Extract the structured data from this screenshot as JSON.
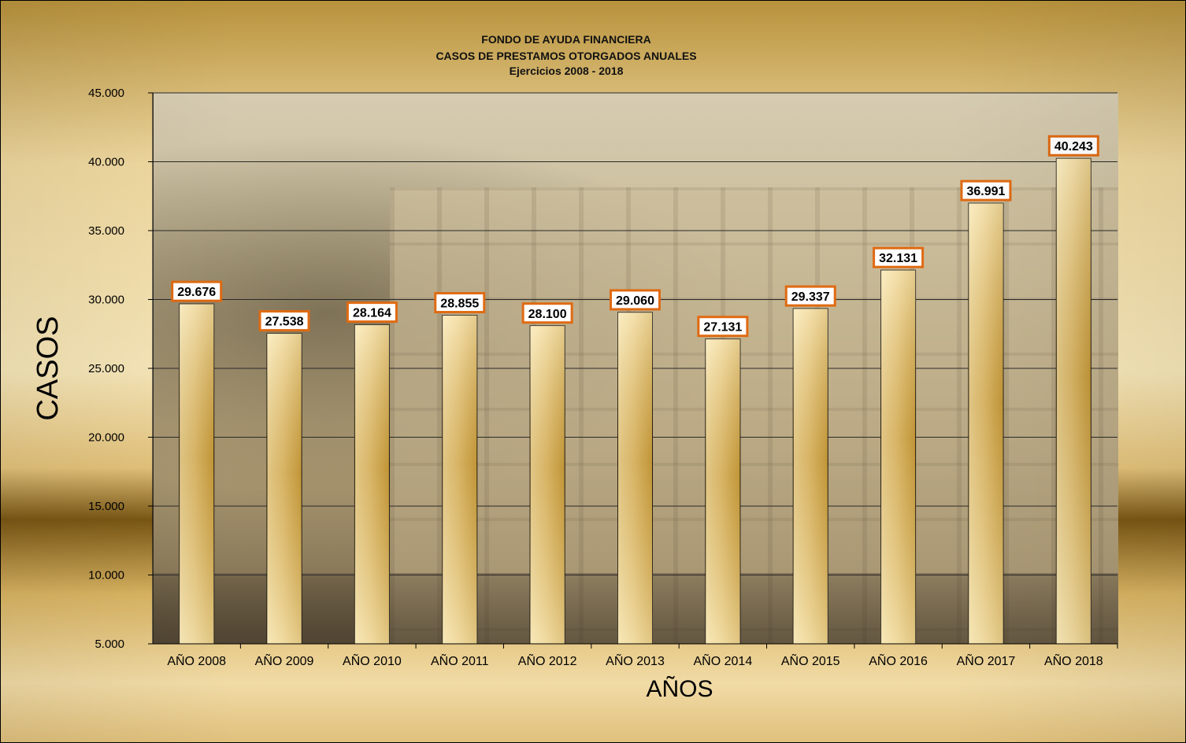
{
  "chart_data": {
    "type": "bar",
    "title": [
      "FONDO DE AYUDA FINANCIERA",
      "CASOS DE PRESTAMOS OTORGADOS ANUALES",
      "Ejercicios 2008 - 2018"
    ],
    "xlabel": "AÑOS",
    "ylabel": "CASOS",
    "categories": [
      "AÑO 2008",
      "AÑO 2009",
      "AÑO 2010",
      "AÑO 2011",
      "AÑO 2012",
      "AÑO 2013",
      "AÑO 2014",
      "AÑO 2015",
      "AÑO 2016",
      "AÑO 2017",
      "AÑO 2018"
    ],
    "values": [
      29676,
      27538,
      28164,
      28855,
      28100,
      29060,
      27131,
      29337,
      32131,
      36991,
      40243
    ],
    "data_labels": [
      "29.676",
      "27.538",
      "28.164",
      "28.855",
      "28.100",
      "29.060",
      "27.131",
      "29.337",
      "32.131",
      "36.991",
      "40.243"
    ],
    "ylim": [
      5000,
      45000
    ],
    "yticks": [
      5000,
      10000,
      15000,
      20000,
      25000,
      30000,
      35000,
      40000,
      45000
    ],
    "ytick_labels": [
      "5.000",
      "10.000",
      "15.000",
      "20.000",
      "25.000",
      "30.000",
      "35.000",
      "40.000",
      "45.000"
    ],
    "grid": true,
    "legend": "none",
    "colors": {
      "bar_light": "#f7e7b5",
      "bar_dark": "#c49a3a",
      "label_border": "#e06a12",
      "gridline": "#2a2a2a"
    }
  }
}
